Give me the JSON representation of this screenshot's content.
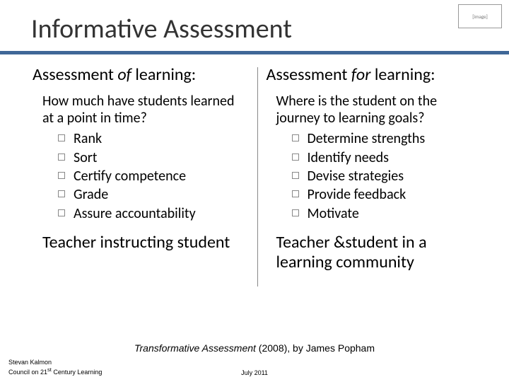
{
  "title": "Informative Assessment",
  "accent_color": "#3f6797",
  "left": {
    "heading_pre": "Assessment ",
    "heading_em": "of",
    "heading_post": " learning:",
    "lead": "How much have students learned at a point in time?",
    "bullets": [
      "Rank",
      "Sort",
      "Certify competence",
      "Grade",
      "Assure accountability"
    ],
    "teacher": "Teacher instructing student"
  },
  "right": {
    "heading_pre": "Assessment ",
    "heading_em": "for",
    "heading_post": " learning:",
    "lead": "Where is the student on the journey to learning goals?",
    "bullets": [
      "Determine strengths",
      "Identify needs",
      "Devise strategies",
      "Provide feedback",
      "Motivate"
    ],
    "teacher": "Teacher &student in a learning community"
  },
  "citation": {
    "book": "Transformative Assessment",
    "rest": " (2008), by James Popham"
  },
  "footer": {
    "author": "Stevan Kalmon",
    "org_pre": "Council on 21",
    "org_sup": "st",
    "org_post": " Century Learning",
    "date": "July 2011"
  }
}
